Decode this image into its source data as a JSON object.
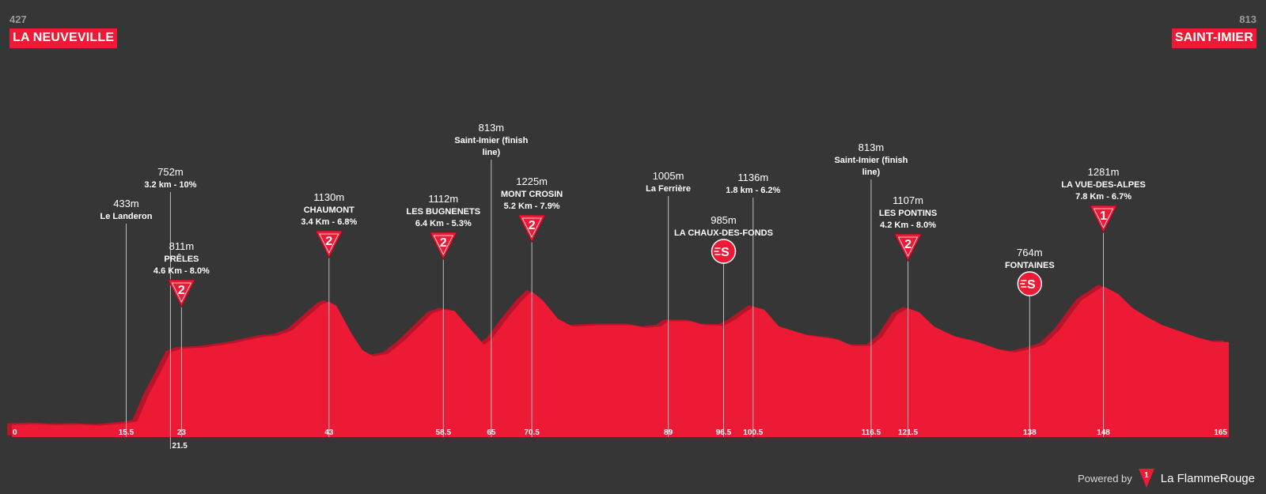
{
  "start": {
    "altitude": "427",
    "name": "LA NEUVEVILLE"
  },
  "finish": {
    "altitude": "813",
    "name": "SAINT-IMIER"
  },
  "footer": {
    "powered_by": "Powered by",
    "brand": "La FlammeRouge",
    "logo_number": "1"
  },
  "colors": {
    "background": "#363636",
    "profile": "#ec1a35",
    "profile_shadow": "#b8142a",
    "text": "#ffffff",
    "marker_line": "#bdbdbd"
  },
  "chart_data": {
    "type": "area",
    "xlim": [
      0,
      165
    ],
    "xlabel": "",
    "ylabel": "",
    "profile": [
      [
        0,
        427
      ],
      [
        3,
        430
      ],
      [
        6,
        426
      ],
      [
        9,
        428
      ],
      [
        12,
        424
      ],
      [
        15.5,
        433
      ],
      [
        17,
        440
      ],
      [
        18.5,
        540
      ],
      [
        20,
        620
      ],
      [
        21.5,
        705
      ],
      [
        23,
        720
      ],
      [
        26,
        724
      ],
      [
        30,
        740
      ],
      [
        34,
        765
      ],
      [
        36,
        770
      ],
      [
        38,
        790
      ],
      [
        40,
        840
      ],
      [
        42,
        890
      ],
      [
        43,
        900
      ],
      [
        44,
        885
      ],
      [
        46,
        780
      ],
      [
        47.5,
        715
      ],
      [
        49,
        690
      ],
      [
        51,
        700
      ],
      [
        53,
        745
      ],
      [
        55,
        800
      ],
      [
        57,
        855
      ],
      [
        58.5,
        870
      ],
      [
        60,
        865
      ],
      [
        62,
        800
      ],
      [
        64,
        735
      ],
      [
        65,
        755
      ],
      [
        67,
        830
      ],
      [
        69,
        900
      ],
      [
        70.5,
        940
      ],
      [
        72,
        905
      ],
      [
        74,
        835
      ],
      [
        76,
        805
      ],
      [
        80,
        810
      ],
      [
        84,
        810
      ],
      [
        86,
        800
      ],
      [
        88,
        805
      ],
      [
        89,
        825
      ],
      [
        92,
        825
      ],
      [
        94,
        810
      ],
      [
        96.5,
        808
      ],
      [
        98,
        830
      ],
      [
        100.5,
        880
      ],
      [
        102,
        870
      ],
      [
        104,
        805
      ],
      [
        108,
        770
      ],
      [
        112,
        755
      ],
      [
        114,
        730
      ],
      [
        116.5,
        730
      ],
      [
        118,
        765
      ],
      [
        120,
        850
      ],
      [
        121.5,
        875
      ],
      [
        123,
        860
      ],
      [
        125,
        805
      ],
      [
        128,
        765
      ],
      [
        131,
        745
      ],
      [
        134,
        715
      ],
      [
        136,
        705
      ],
      [
        138,
        718
      ],
      [
        140,
        735
      ],
      [
        142,
        790
      ],
      [
        145,
        905
      ],
      [
        148,
        960
      ],
      [
        150,
        930
      ],
      [
        152,
        875
      ],
      [
        154,
        840
      ],
      [
        156,
        810
      ],
      [
        158,
        790
      ],
      [
        161,
        760
      ],
      [
        163,
        745
      ],
      [
        165,
        745
      ]
    ],
    "ticks": [
      "0",
      "15.5",
      "21.5",
      "23",
      "43",
      "58.5",
      "65",
      "70.5",
      "89",
      "96.5",
      "100.5",
      "116.5",
      "121.5",
      "138",
      "148",
      "165"
    ],
    "markers": [
      {
        "km": 15.5,
        "type": "place",
        "alt": "433m",
        "name": "Le Landeron",
        "detail": ""
      },
      {
        "km": 21.5,
        "type": "place",
        "alt": "752m",
        "name": "",
        "detail": "3.2 km - 10%"
      },
      {
        "km": 23,
        "type": "climb",
        "category": "2",
        "alt": "811m",
        "name": "PRÊLES",
        "detail": "4.6 Km - 8.0%"
      },
      {
        "km": 43,
        "type": "climb",
        "category": "2",
        "alt": "1130m",
        "name": "CHAUMONT",
        "detail": "3.4 Km - 6.8%"
      },
      {
        "km": 58.5,
        "type": "climb",
        "category": "2",
        "alt": "1112m",
        "name": "LES BUGNENETS",
        "detail": "6.4 Km - 5.3%"
      },
      {
        "km": 65,
        "type": "place",
        "alt": "813m",
        "name": "Saint-Imier (finish line)",
        "detail": ""
      },
      {
        "km": 70.5,
        "type": "climb",
        "category": "2",
        "alt": "1225m",
        "name": "MONT CROSIN",
        "detail": "5.2 Km - 7.9%"
      },
      {
        "km": 89,
        "type": "place",
        "alt": "1005m",
        "name": "La Ferrière",
        "detail": ""
      },
      {
        "km": 96.5,
        "type": "sprint",
        "alt": "985m",
        "name": "LA CHAUX-DES-FONDS",
        "detail": ""
      },
      {
        "km": 100.5,
        "type": "place",
        "alt": "1136m",
        "name": "",
        "detail": "1.8 km - 6.2%"
      },
      {
        "km": 116.5,
        "type": "place",
        "alt": "813m",
        "name": "Saint-Imier (finish line)",
        "detail": ""
      },
      {
        "km": 121.5,
        "type": "climb",
        "category": "2",
        "alt": "1107m",
        "name": "LES PONTINS",
        "detail": "4.2 Km - 8.0%"
      },
      {
        "km": 138,
        "type": "sprint",
        "alt": "764m",
        "name": "FONTAINES",
        "detail": ""
      },
      {
        "km": 148,
        "type": "climb",
        "category": "1",
        "alt": "1281m",
        "name": "LA VUE-DES-ALPES",
        "detail": "7.8 Km - 6.7%"
      }
    ]
  }
}
